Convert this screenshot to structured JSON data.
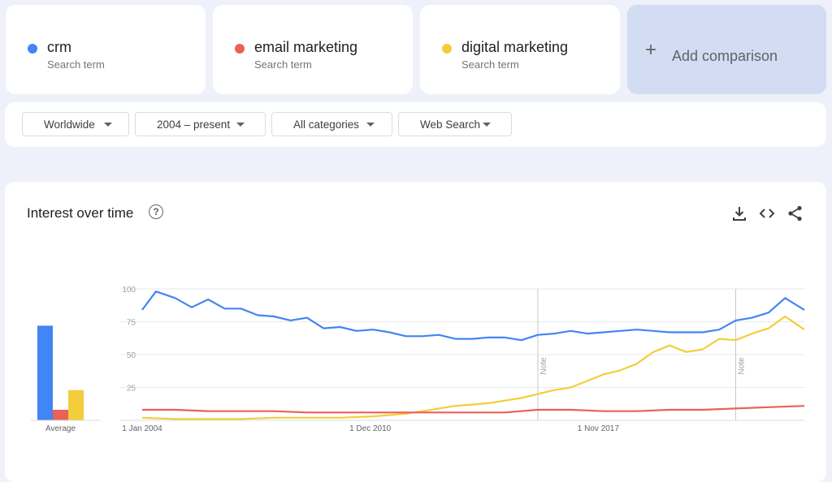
{
  "terms": [
    {
      "name": "crm",
      "sub": "Search term",
      "color": "#4285f4"
    },
    {
      "name": "email marketing",
      "sub": "Search term",
      "color": "#ea6156"
    },
    {
      "name": "digital marketing",
      "sub": "Search term",
      "color": "#f4cd3c"
    }
  ],
  "add_comparison": {
    "plus": "+",
    "label": "Add comparison"
  },
  "filters": {
    "region": "Worldwide",
    "period": "2004 – present",
    "category": "All categories",
    "search_type": "Web Search"
  },
  "panel": {
    "title": "Interest over time",
    "help": "?",
    "icons": [
      "download-icon",
      "embed-icon",
      "share-icon"
    ]
  },
  "chart_data": {
    "type": "line",
    "title": "",
    "average_bars": {
      "label": "Average",
      "values": [
        {
          "series": "crm",
          "value": 72
        },
        {
          "series": "email marketing",
          "value": 8
        },
        {
          "series": "digital marketing",
          "value": 23
        }
      ]
    },
    "xlim": [
      "2004-01",
      "2024-02"
    ],
    "ylim": [
      0,
      100
    ],
    "y_ticks": [
      25,
      50,
      75,
      100
    ],
    "x_ticks": [
      {
        "date": "2004-01",
        "label": "1 Jan 2004"
      },
      {
        "date": "2010-12",
        "label": "1 Dec 2010"
      },
      {
        "date": "2017-11",
        "label": "1 Nov 2017"
      }
    ],
    "notes": [
      {
        "date": "2016-01",
        "label": "Note"
      },
      {
        "date": "2022-01",
        "label": "Note"
      }
    ],
    "series": [
      {
        "name": "crm",
        "color": "#4285f4",
        "points": [
          [
            "2004-01",
            84
          ],
          [
            "2004-06",
            98
          ],
          [
            "2005-01",
            93
          ],
          [
            "2005-07",
            86
          ],
          [
            "2006-01",
            92
          ],
          [
            "2006-07",
            85
          ],
          [
            "2007-01",
            85
          ],
          [
            "2007-07",
            80
          ],
          [
            "2008-01",
            79
          ],
          [
            "2008-07",
            76
          ],
          [
            "2009-01",
            78
          ],
          [
            "2009-07",
            70
          ],
          [
            "2010-01",
            71
          ],
          [
            "2010-07",
            68
          ],
          [
            "2011-01",
            69
          ],
          [
            "2011-07",
            67
          ],
          [
            "2012-01",
            64
          ],
          [
            "2012-07",
            64
          ],
          [
            "2013-01",
            65
          ],
          [
            "2013-07",
            62
          ],
          [
            "2014-01",
            62
          ],
          [
            "2014-07",
            63
          ],
          [
            "2015-01",
            63
          ],
          [
            "2015-07",
            61
          ],
          [
            "2016-01",
            65
          ],
          [
            "2016-07",
            66
          ],
          [
            "2017-01",
            68
          ],
          [
            "2017-07",
            66
          ],
          [
            "2018-01",
            67
          ],
          [
            "2018-07",
            68
          ],
          [
            "2019-01",
            69
          ],
          [
            "2019-07",
            68
          ],
          [
            "2020-01",
            67
          ],
          [
            "2020-07",
            67
          ],
          [
            "2021-01",
            67
          ],
          [
            "2021-07",
            69
          ],
          [
            "2022-01",
            76
          ],
          [
            "2022-07",
            78
          ],
          [
            "2023-01",
            82
          ],
          [
            "2023-07",
            93
          ],
          [
            "2024-02",
            84
          ]
        ]
      },
      {
        "name": "email marketing",
        "color": "#ea6156",
        "points": [
          [
            "2004-01",
            8
          ],
          [
            "2005-01",
            8
          ],
          [
            "2006-01",
            7
          ],
          [
            "2007-01",
            7
          ],
          [
            "2008-01",
            7
          ],
          [
            "2009-01",
            6
          ],
          [
            "2010-01",
            6
          ],
          [
            "2011-01",
            6
          ],
          [
            "2012-01",
            6
          ],
          [
            "2013-01",
            6
          ],
          [
            "2014-01",
            6
          ],
          [
            "2015-01",
            6
          ],
          [
            "2016-01",
            8
          ],
          [
            "2017-01",
            8
          ],
          [
            "2018-01",
            7
          ],
          [
            "2019-01",
            7
          ],
          [
            "2020-01",
            8
          ],
          [
            "2021-01",
            8
          ],
          [
            "2022-01",
            9
          ],
          [
            "2023-01",
            10
          ],
          [
            "2024-02",
            11
          ]
        ]
      },
      {
        "name": "digital marketing",
        "color": "#f4cd3c",
        "points": [
          [
            "2004-01",
            2
          ],
          [
            "2005-01",
            1
          ],
          [
            "2006-01",
            1
          ],
          [
            "2007-01",
            1
          ],
          [
            "2008-01",
            2
          ],
          [
            "2009-01",
            2
          ],
          [
            "2010-01",
            2
          ],
          [
            "2011-01",
            3
          ],
          [
            "2012-01",
            5
          ],
          [
            "2012-07",
            7
          ],
          [
            "2013-01",
            9
          ],
          [
            "2013-07",
            11
          ],
          [
            "2014-01",
            12
          ],
          [
            "2014-07",
            13
          ],
          [
            "2015-01",
            15
          ],
          [
            "2015-07",
            17
          ],
          [
            "2016-01",
            20
          ],
          [
            "2016-07",
            23
          ],
          [
            "2017-01",
            25
          ],
          [
            "2017-07",
            30
          ],
          [
            "2018-01",
            35
          ],
          [
            "2018-07",
            38
          ],
          [
            "2019-01",
            43
          ],
          [
            "2019-07",
            52
          ],
          [
            "2020-01",
            57
          ],
          [
            "2020-07",
            52
          ],
          [
            "2021-01",
            54
          ],
          [
            "2021-07",
            62
          ],
          [
            "2022-01",
            61
          ],
          [
            "2022-07",
            66
          ],
          [
            "2023-01",
            70
          ],
          [
            "2023-07",
            79
          ],
          [
            "2024-02",
            69
          ]
        ]
      }
    ]
  }
}
